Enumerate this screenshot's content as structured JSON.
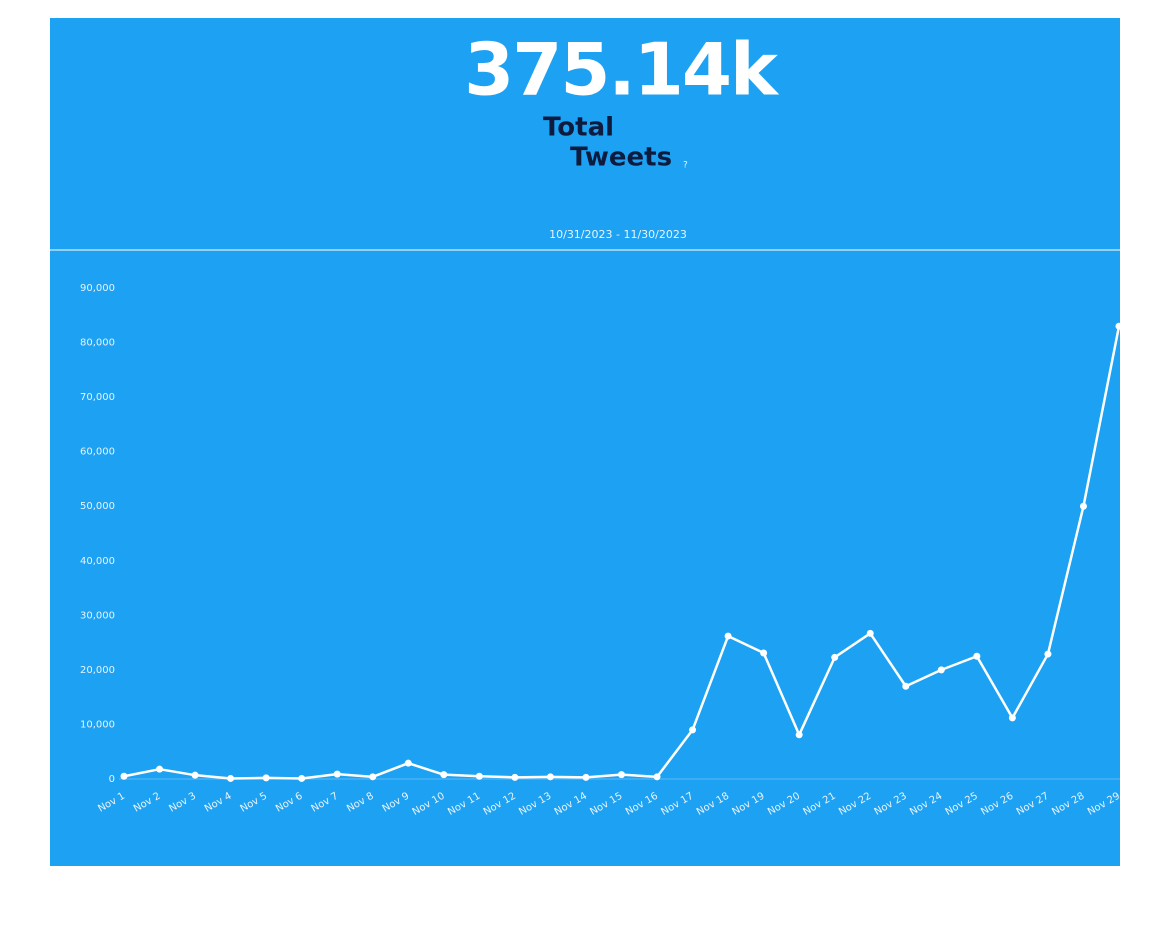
{
  "header": {
    "total": "375.14k",
    "label": [
      "Total",
      "Tweets"
    ],
    "help": "?",
    "date_range": "10/31/2023 - 11/30/2023"
  },
  "chart_data": {
    "type": "line",
    "categories": [
      "Nov 1",
      "Nov 2",
      "Nov 3",
      "Nov 4",
      "Nov 5",
      "Nov 6",
      "Nov 7",
      "Nov 8",
      "Nov 9",
      "Nov 10",
      "Nov 11",
      "Nov 12",
      "Nov 13",
      "Nov 14",
      "Nov 15",
      "Nov 16",
      "Nov 17",
      "Nov 18",
      "Nov 19",
      "Nov 20",
      "Nov 21",
      "Nov 22",
      "Nov 23",
      "Nov 24",
      "Nov 25",
      "Nov 26",
      "Nov 27",
      "Nov 28",
      "Nov 29"
    ],
    "values": [
      500,
      1800,
      700,
      100,
      200,
      100,
      900,
      400,
      2900,
      800,
      500,
      300,
      400,
      300,
      800,
      400,
      9000,
      26200,
      23100,
      8100,
      22300,
      26700,
      17000,
      20000,
      22500,
      11200,
      22900,
      50000,
      83000
    ],
    "color": "#ffffff",
    "ylim": [
      0,
      90000
    ],
    "yticks": [
      0,
      {
        "value": 10000,
        "label": "10,000"
      },
      {
        "value": 20000,
        "label": "20,000"
      },
      {
        "value": 30000,
        "label": "30,000"
      },
      {
        "value": 40000,
        "label": "40,000"
      },
      {
        "value": 50000,
        "label": "50,000"
      },
      {
        "value": 60000,
        "label": "60,000"
      },
      {
        "value": 70000,
        "label": "70,000"
      },
      {
        "value": 80000,
        "label": "80,000"
      },
      {
        "value": 90000,
        "label": "90,000"
      }
    ],
    "grid": false
  }
}
